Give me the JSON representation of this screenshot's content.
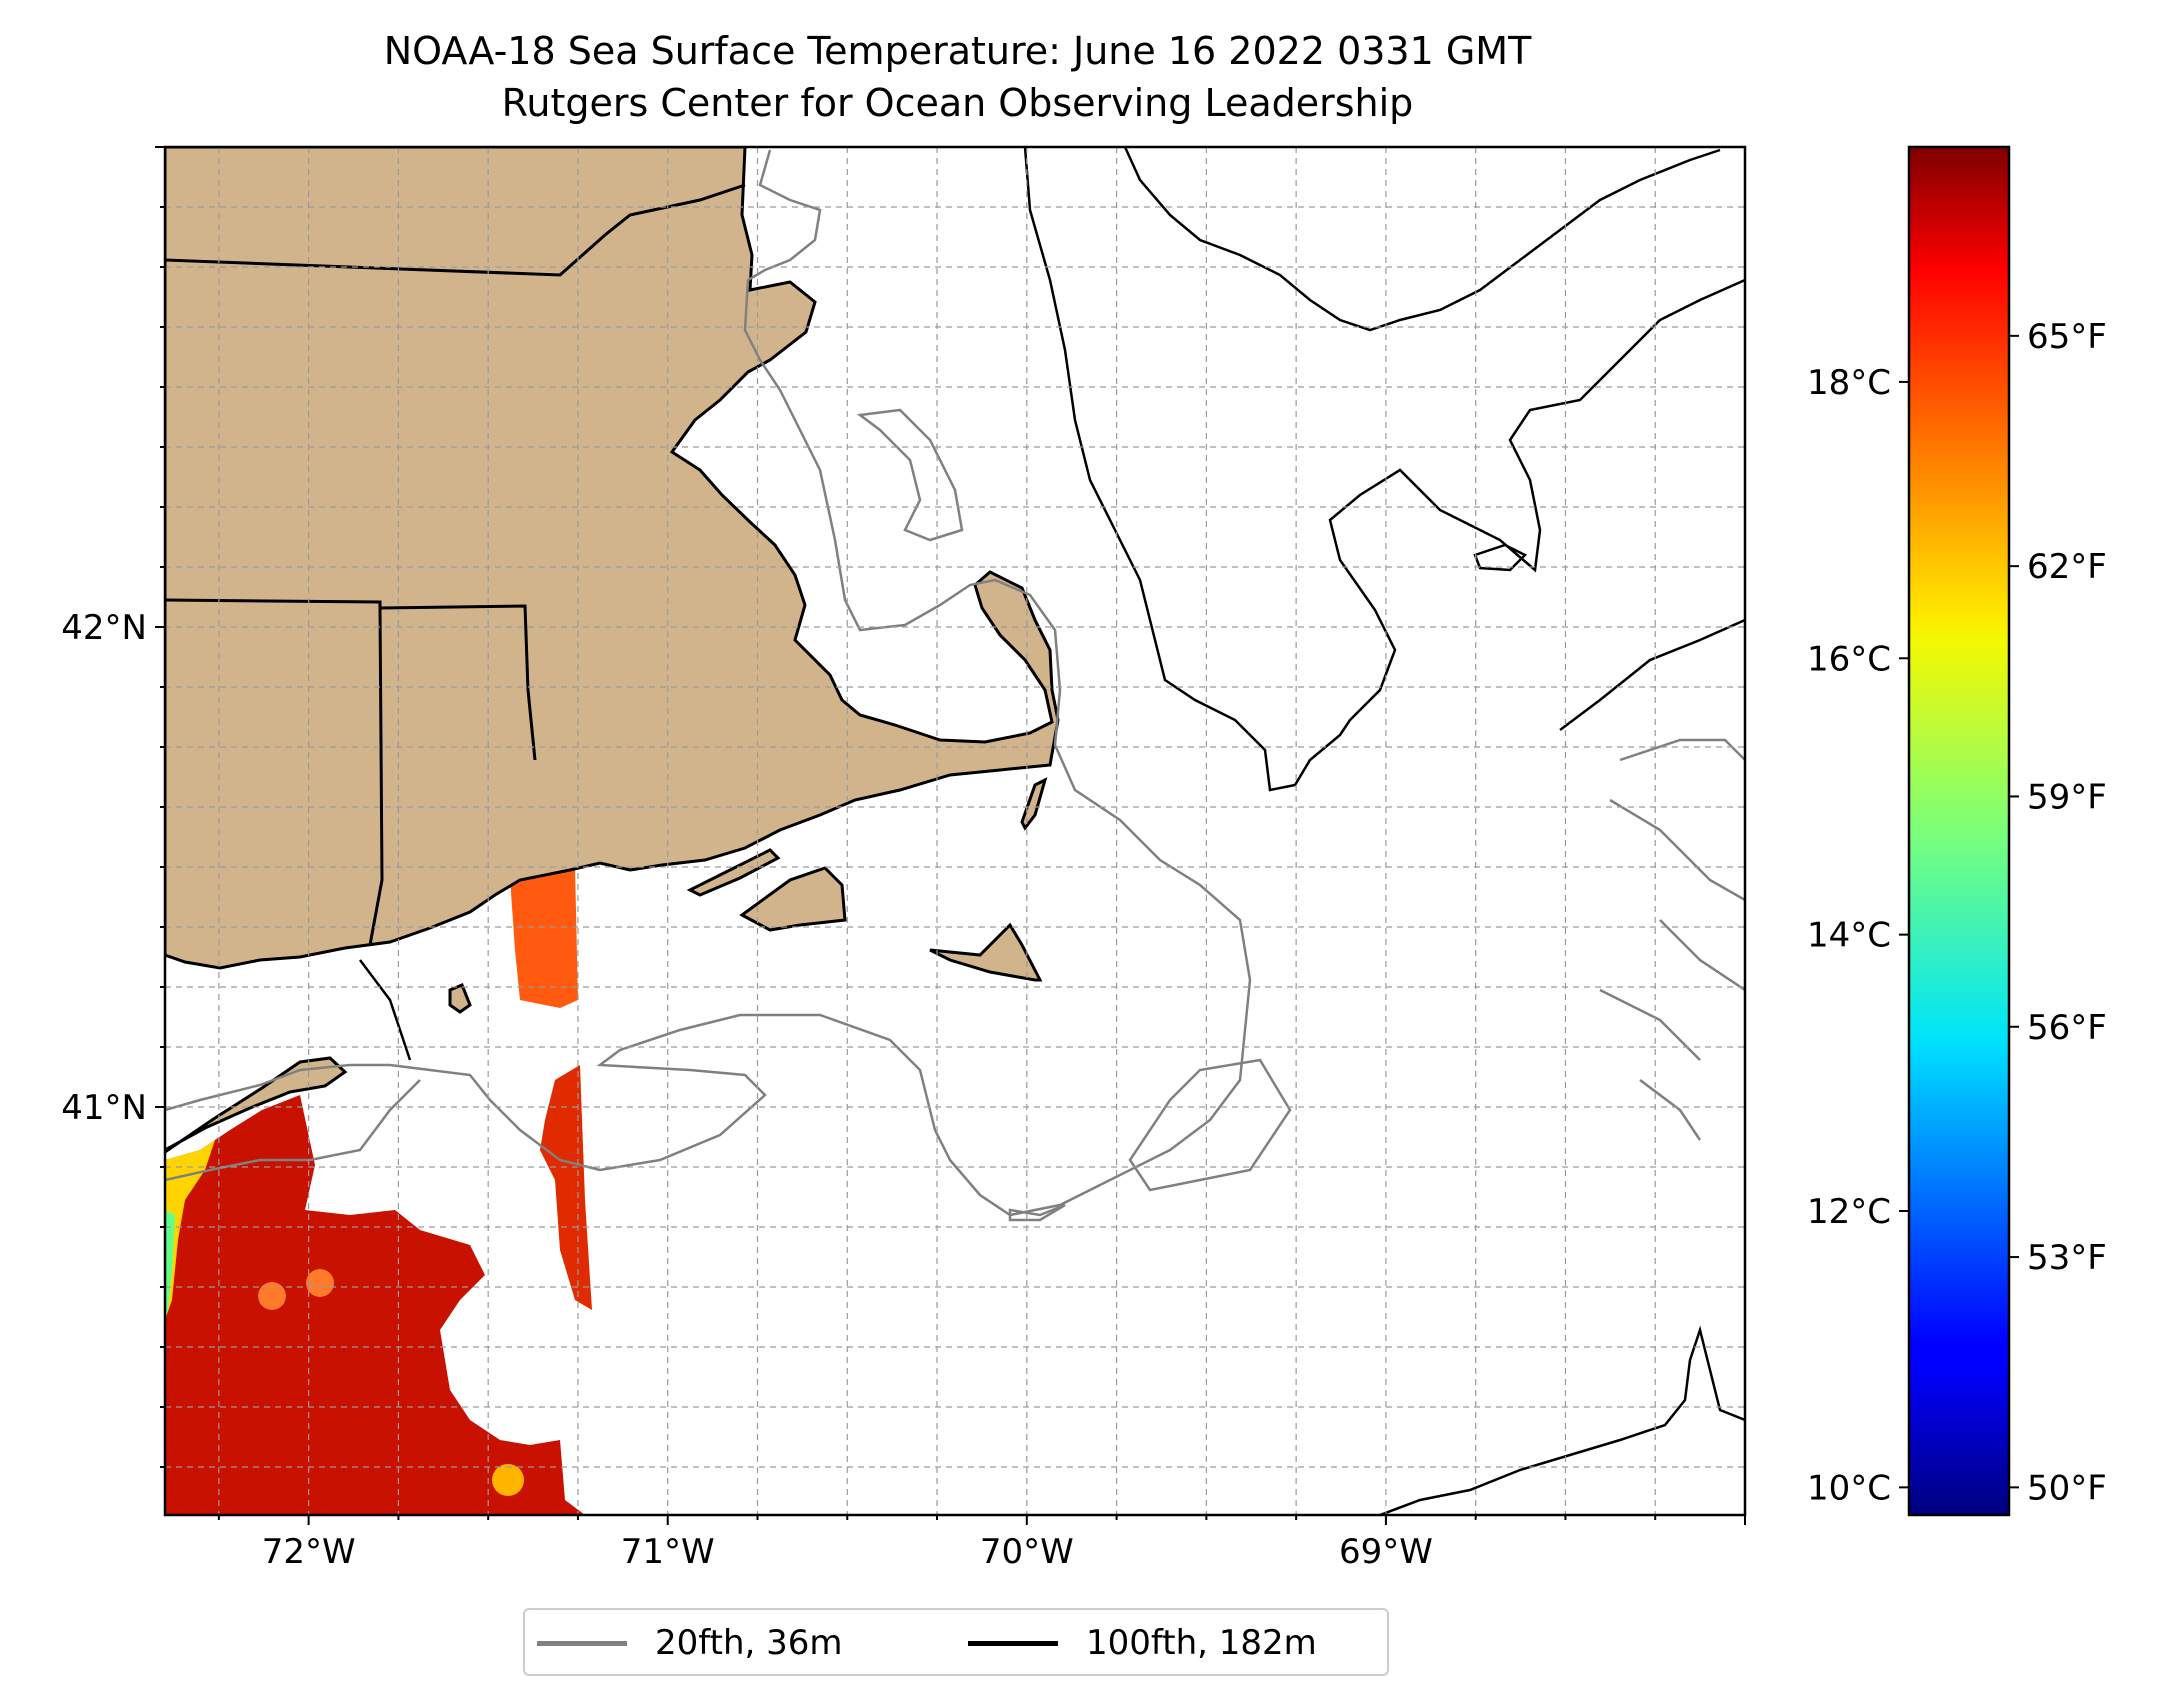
{
  "title": "NOAA-18 Sea Surface Temperature: June 16 2022 0331 GMT",
  "subtitle": "Rutgers Center for Ocean Observing Leadership",
  "map": {
    "lon_range": [
      -72.4,
      -68.0
    ],
    "lat_range": [
      40.15,
      43.0
    ],
    "lon_ticks": [
      {
        "value": -72,
        "label": "72°W"
      },
      {
        "value": -71,
        "label": "71°W"
      },
      {
        "value": -70,
        "label": "70°W"
      },
      {
        "value": -69,
        "label": "69°W"
      }
    ],
    "lat_ticks": [
      {
        "value": 42,
        "label": "42°N"
      },
      {
        "value": 41,
        "label": "41°N"
      }
    ],
    "gridlines": true,
    "land_color": "#D2B48C",
    "ocean_color": "#FFFFFF"
  },
  "colorbar": {
    "colormap": "jet",
    "celsius_range": [
      9.8,
      19.7
    ],
    "celsius_ticks": [
      {
        "value": 10,
        "label": "10°C"
      },
      {
        "value": 12,
        "label": "12°C"
      },
      {
        "value": 14,
        "label": "14°C"
      },
      {
        "value": 16,
        "label": "16°C"
      },
      {
        "value": 18,
        "label": "18°C"
      }
    ],
    "fahrenheit_ticks": [
      {
        "value": 50,
        "label": "50°F"
      },
      {
        "value": 53,
        "label": "53°F"
      },
      {
        "value": 56,
        "label": "56°F"
      },
      {
        "value": 59,
        "label": "59°F"
      },
      {
        "value": 62,
        "label": "62°F"
      },
      {
        "value": 65,
        "label": "65°F"
      }
    ]
  },
  "legend": {
    "items": [
      {
        "label": "20fth, 36m",
        "color": "#808080"
      },
      {
        "label": "100fth, 182m",
        "color": "#000000"
      }
    ]
  }
}
